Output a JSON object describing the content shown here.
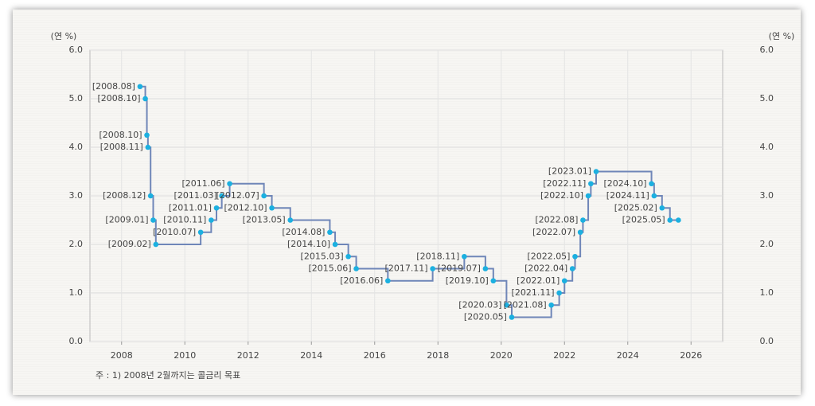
{
  "chart_data": {
    "type": "step",
    "y_label": "(연 %)",
    "y2_label": "(연 %)",
    "footnote": "주 : 1) 2008년 2월까지는 콜금리 목표",
    "x": [
      2008.583,
      2008.75,
      2008.8,
      2008.833,
      2008.917,
      2009.0,
      2009.083,
      2010.5,
      2010.833,
      2011.0,
      2011.167,
      2011.417,
      2012.5,
      2012.75,
      2013.333,
      2014.583,
      2014.75,
      2015.167,
      2015.417,
      2016.417,
      2017.833,
      2018.833,
      2019.5,
      2019.75,
      2020.167,
      2020.333,
      2021.583,
      2021.833,
      2022.0,
      2022.25,
      2022.333,
      2022.5,
      2022.583,
      2022.75,
      2022.833,
      2023.0,
      2024.75,
      2024.833,
      2025.083,
      2025.333,
      2025.6
    ],
    "point_labels": [
      "[2008.08]",
      "[2008.10]",
      "[2008.10]",
      "[2008.11]",
      "[2008.12]",
      "[2009.01]",
      "[2009.02]",
      "[2010.07]",
      "[2010.11]",
      "[2011.01]",
      "[2011.03]",
      "[2011.06]",
      "[2012.07]",
      "[2012.10]",
      "[2013.05]",
      "[2014.08]",
      "[2014.10]",
      "[2015.03]",
      "[2015.06]",
      "[2016.06]",
      "[2017.11]",
      "[2018.11]",
      "[2019.07]",
      "[2019.10]",
      "[2020.03]",
      "[2020.05]",
      "[2021.08]",
      "[2021.11]",
      "[2022.01]",
      "[2022.04]",
      "[2022.05]",
      "[2022.07]",
      "[2022.08]",
      "[2022.10]",
      "[2022.11]",
      "[2023.01]",
      "[2024.10]",
      "[2024.11]",
      "[2025.02]",
      "[2025.05]",
      null
    ],
    "values": [
      5.25,
      5.0,
      4.25,
      4.0,
      3.0,
      2.5,
      2.0,
      2.25,
      2.5,
      2.75,
      3.0,
      3.25,
      3.0,
      2.75,
      2.5,
      2.25,
      2.0,
      1.75,
      1.5,
      1.25,
      1.5,
      1.75,
      1.5,
      1.25,
      0.75,
      0.5,
      0.75,
      1.0,
      1.25,
      1.5,
      1.75,
      2.25,
      2.5,
      3.0,
      3.25,
      3.5,
      3.25,
      3.0,
      2.75,
      2.5,
      2.5
    ],
    "color": "#6f86b8",
    "marker_color": "#1cb0e0",
    "xlim": [
      2007,
      2027
    ],
    "xticks": [
      2008,
      2010,
      2012,
      2014,
      2016,
      2018,
      2020,
      2022,
      2024,
      2026
    ],
    "ylim": [
      0,
      6
    ],
    "yticks": [
      {
        "value": 0,
        "label": "0.0"
      },
      {
        "value": 1,
        "label": "1.0"
      },
      {
        "value": 2,
        "label": "2.0"
      },
      {
        "value": 3,
        "label": "3.0"
      },
      {
        "value": 4,
        "label": "4.0"
      },
      {
        "value": 5,
        "label": "5.0"
      },
      {
        "value": 6,
        "label": "6.0"
      }
    ],
    "y2lim": [
      0,
      6
    ],
    "y2ticks": [
      {
        "value": 0,
        "label": "0.0"
      },
      {
        "value": 1,
        "label": "1.0"
      },
      {
        "value": 2,
        "label": "2.0"
      },
      {
        "value": 3,
        "label": "3.0"
      },
      {
        "value": 4,
        "label": "4.0"
      },
      {
        "value": 5,
        "label": "5.0"
      },
      {
        "value": 6,
        "label": "6.0"
      }
    ],
    "grid": true
  }
}
